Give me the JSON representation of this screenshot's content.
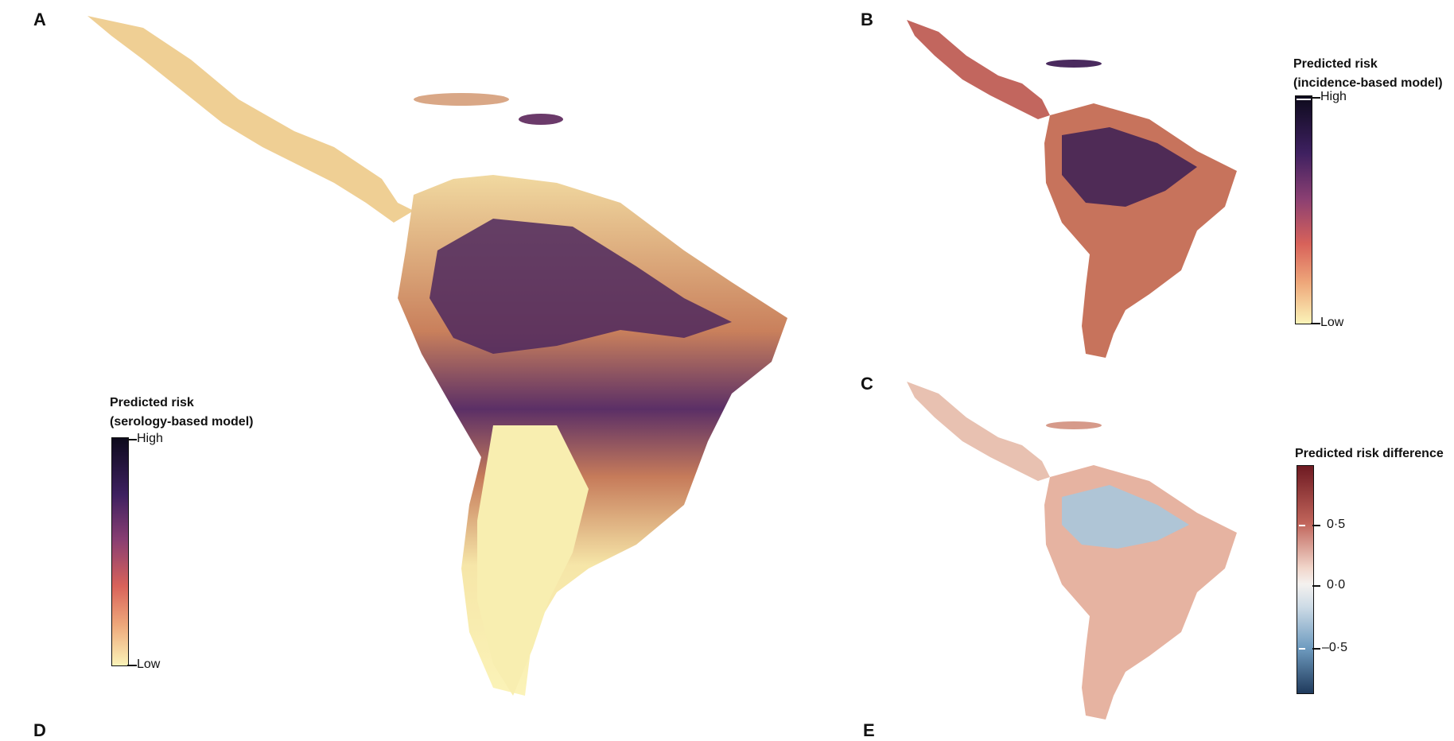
{
  "panels": {
    "a": {
      "letter": "A"
    },
    "b": {
      "letter": "B"
    },
    "c": {
      "letter": "C"
    },
    "d": {
      "letter": "D"
    },
    "e": {
      "letter": "E"
    }
  },
  "legends": {
    "serology": {
      "title_line1": "Predicted risk",
      "title_line2": "(serology-based model)",
      "high": "High",
      "low": "Low"
    },
    "incidence": {
      "title_line1": "Predicted risk",
      "title_line2": "(incidence-based model)",
      "high": "High",
      "low": "Low"
    },
    "difference": {
      "title": "Predicted risk difference",
      "ticks": [
        "0·5",
        "0·0",
        "–0·5"
      ]
    }
  },
  "colors": {
    "risk_low": "#fbf3b8",
    "risk_mid": "#e08a5c",
    "risk_mid2": "#8a3f72",
    "risk_high": "#0d0a1c",
    "diff_pos": "#8b1a1f",
    "diff_zero": "#f4f1ef",
    "diff_neg": "#1f4a72"
  }
}
